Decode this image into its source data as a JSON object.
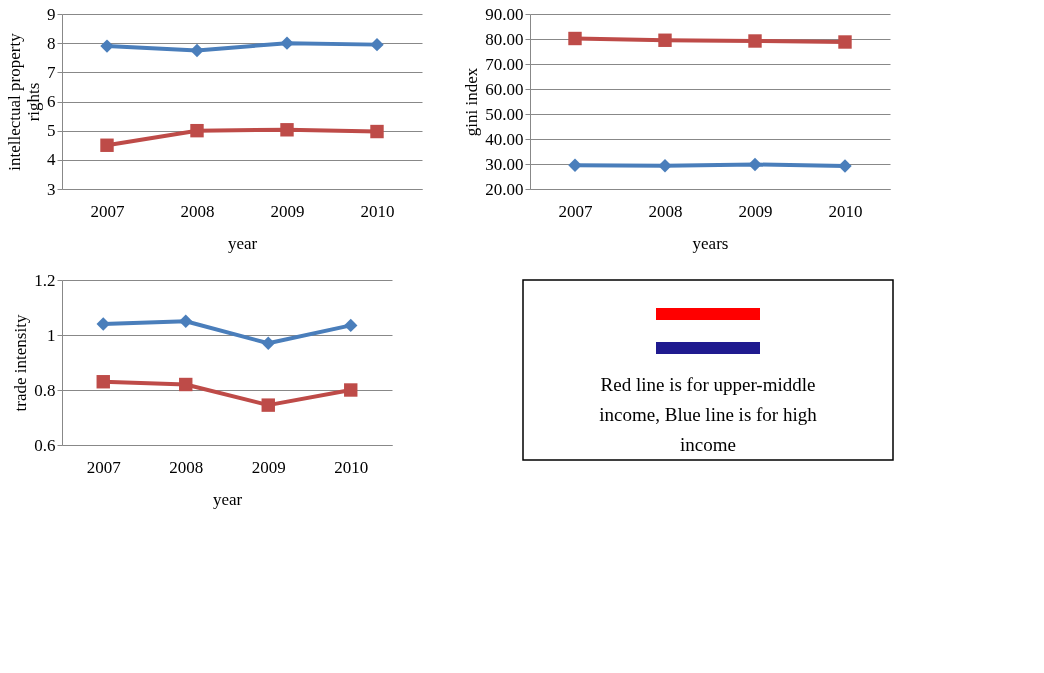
{
  "chart_data": [
    {
      "type": "line",
      "categories": [
        "2007",
        "2008",
        "2009",
        "2010"
      ],
      "xlabel": "year",
      "ylabel": "intellectual property rights",
      "ylim": [
        3,
        9
      ],
      "yticks": [
        3,
        4,
        5,
        6,
        7,
        8,
        9
      ],
      "grid": "y",
      "line_style": "solid",
      "series": [
        {
          "color": "#4a7ebb",
          "marker": "diamond",
          "values": [
            7.9,
            7.75,
            8.0,
            7.95
          ]
        },
        {
          "color": "#be4b48",
          "marker": "square",
          "values": [
            4.5,
            5.0,
            5.03,
            4.97
          ]
        }
      ]
    },
    {
      "type": "line",
      "categories": [
        "2007",
        "2008",
        "2009",
        "2010"
      ],
      "xlabel": "years",
      "ylabel": "gini index",
      "ylim": [
        20,
        90
      ],
      "yticks": [
        {
          "value": 20,
          "label": "20.00"
        },
        {
          "value": 30,
          "label": "30.00"
        },
        {
          "value": 40,
          "label": "40.00"
        },
        {
          "value": 50,
          "label": "50.00"
        },
        {
          "value": 60,
          "label": "60.00"
        },
        {
          "value": 70,
          "label": "70.00"
        },
        {
          "value": 80,
          "label": "80.00"
        },
        {
          "value": 90,
          "label": "90.00"
        }
      ],
      "grid": "y",
      "line_style": "solid",
      "series": [
        {
          "color": "#be4b48",
          "marker": "square",
          "values": [
            80.2,
            79.5,
            79.2,
            78.8
          ]
        },
        {
          "color": "#4a7ebb",
          "marker": "diamond",
          "values": [
            29.5,
            29.3,
            29.8,
            29.2
          ]
        }
      ]
    },
    {
      "type": "line",
      "categories": [
        "2007",
        "2008",
        "2009",
        "2010"
      ],
      "xlabel": "year",
      "ylabel": "trade intensity",
      "ylim": [
        0.6,
        1.2
      ],
      "yticks": [
        0.6,
        0.8,
        1,
        1.2
      ],
      "grid": "y",
      "line_style": "solid",
      "series": [
        {
          "color": "#4a7ebb",
          "marker": "diamond",
          "values": [
            1.04,
            1.05,
            0.97,
            1.035
          ]
        },
        {
          "color": "#be4b48",
          "marker": "square",
          "values": [
            0.83,
            0.82,
            0.745,
            0.8
          ]
        }
      ]
    },
    {
      "type": "other",
      "colors": [
        "#ff0000",
        "#1f1a8f"
      ],
      "annotations": [
        "Red line is for upper-middle income, Blue line is for high income"
      ]
    }
  ]
}
